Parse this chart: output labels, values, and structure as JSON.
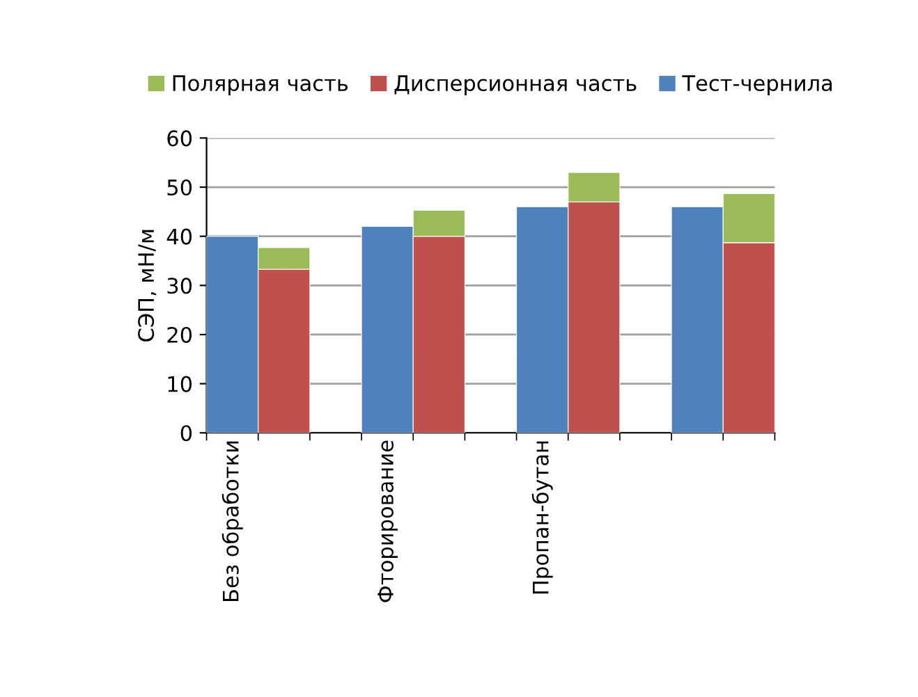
{
  "chart_data": {
    "type": "bar",
    "stacked": true,
    "ylabel": "СЭП, мН/м",
    "categories": [
      "Без обработки",
      null,
      null,
      "Фторирование",
      null,
      null,
      "Пропан-бутан",
      null,
      null,
      null,
      null
    ],
    "series": [
      {
        "name": "Тест-чернила",
        "color": "#4f81bd",
        "values": [
          40,
          null,
          null,
          42,
          null,
          null,
          46,
          null,
          null,
          46,
          null
        ]
      },
      {
        "name": "Дисперсионная часть",
        "color": "#c0504d",
        "values": [
          null,
          33.3,
          null,
          null,
          40,
          null,
          null,
          47,
          null,
          null,
          38.7
        ]
      },
      {
        "name": "Полярная часть",
        "color": "#9bbb59",
        "values": [
          null,
          4.4,
          null,
          null,
          5.3,
          null,
          null,
          6,
          null,
          null,
          10
        ]
      }
    ],
    "ylim": [
      0,
      60
    ],
    "yticks": [
      0,
      10,
      20,
      30,
      40,
      50,
      60
    ],
    "grid": "y",
    "legend": "top"
  }
}
